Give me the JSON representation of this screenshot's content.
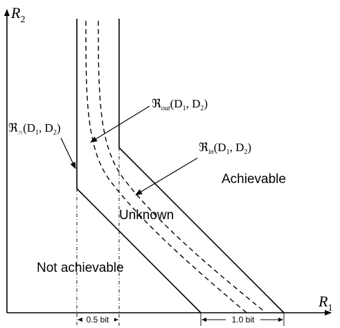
{
  "axes": {
    "y_label": "R",
    "y_sub": "2",
    "x_label": "R",
    "x_sub": "1"
  },
  "regions": {
    "achievable": "Achievable",
    "unknown": "Unknown",
    "not_achievable": "Not achievable"
  },
  "formulas": {
    "outer_bound": {
      "symbol": "ℜ",
      "sub": "out",
      "args": "(D",
      "a1": "1",
      "mid": ", D",
      "a2": "2",
      "end": ")"
    },
    "intersection": {
      "symbol": "ℜ",
      "sub": "∩",
      "args": "(D",
      "a1": "1",
      "mid": ", D",
      "a2": "2",
      "end": ")"
    },
    "inner_bound": {
      "symbol": "ℜ",
      "sub": "in",
      "args": "(D",
      "a1": "1",
      "mid": ", D",
      "a2": "2",
      "end": ")"
    }
  },
  "dimensions": {
    "gap_small": "0.5 bit",
    "gap_large": "1.0 bit"
  }
}
